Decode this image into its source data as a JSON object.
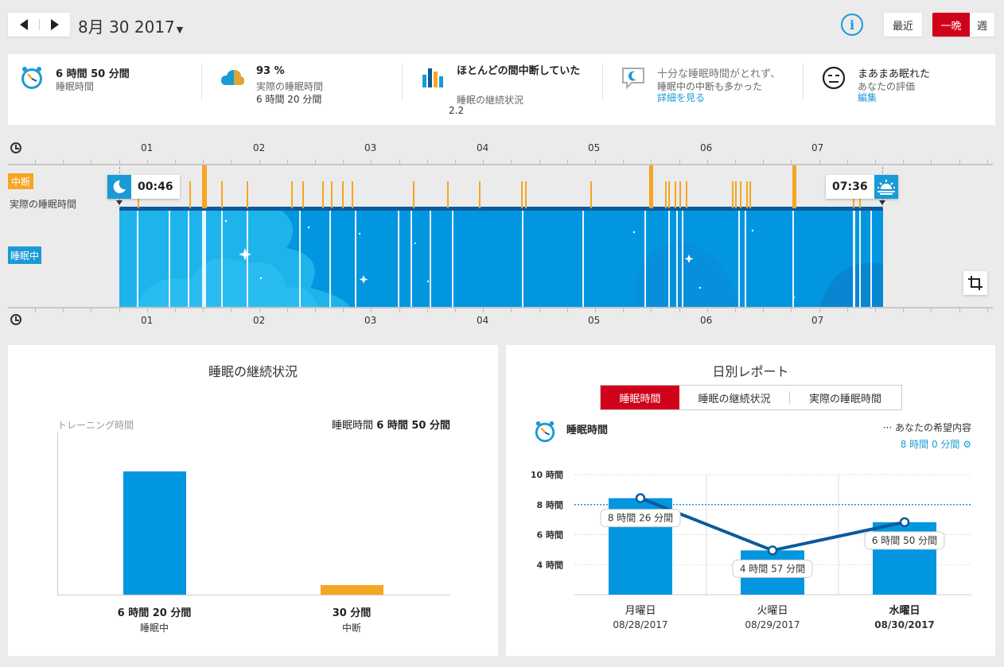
{
  "header": {
    "date": "8月 30 2017",
    "recent_label": "最近",
    "mode_night": "一晩",
    "mode_week": "週",
    "colors": {
      "accent_red": "#d0021b",
      "accent_blue": "#1a9ad6",
      "interrupt_orange": "#f5a623"
    }
  },
  "summary": {
    "sleep_time": {
      "value": "6 時間 50 分間",
      "label": "睡眠時間",
      "icon": "alarm-clock-icon"
    },
    "actual": {
      "percent": "93 %",
      "label": "実際の睡眠時間",
      "value": "6 時間 20 分間",
      "icon": "cloud-icon"
    },
    "continuity": {
      "title": "ほとんどの間中断していた",
      "label": "睡眠の継続状況",
      "value": "2.2",
      "icon": "bar-levels-icon"
    },
    "feedback": {
      "line1": "十分な睡眠時間がとれず、",
      "line2": "睡眠中の中断も多かった",
      "link": "詳細を見る",
      "icon": "speech-moon-icon"
    },
    "rating": {
      "title": "まあまあ眠れた",
      "label": "あなたの評価",
      "link": "編集",
      "icon": "neutral-face-icon"
    }
  },
  "timeline": {
    "hours": [
      "01",
      "02",
      "03",
      "04",
      "05",
      "06",
      "07"
    ],
    "tag_interrupt": "中断",
    "tag_actual": "実際の睡眠時間",
    "tag_sleeping": "睡眠中",
    "start_time": "00:46",
    "end_time": "07:36"
  },
  "continuity_panel": {
    "title": "睡眠の継続状況",
    "training_label": "トレーニング時間",
    "sleep_total_prefix": "睡眠時間",
    "sleep_total_value": "6 時間 50 分間",
    "chart_data": {
      "type": "bar",
      "categories": [
        "睡眠中",
        "中断"
      ],
      "values_minutes": [
        380,
        30
      ],
      "value_labels": [
        "6 時間 20 分間",
        "30 分間"
      ]
    }
  },
  "daily_panel": {
    "title": "日別レポート",
    "tabs": [
      "睡眠時間",
      "睡眠の継続状況",
      "実際の睡眠時間"
    ],
    "metric_title": "睡眠時間",
    "goal_label": "··· あなたの希望内容",
    "goal_value": "8 時間 0 分間",
    "chart_data": {
      "type": "bar",
      "ylabel_ticks": [
        "10 時間",
        "8 時間",
        "6 時間",
        "4 時間"
      ],
      "ylim": [
        2,
        10
      ],
      "goal_hours": 8,
      "categories": [
        "月曜日",
        "火曜日",
        "水曜日"
      ],
      "dates": [
        "08/28/2017",
        "08/29/2017",
        "08/30/2017"
      ],
      "values_hours": [
        8.43,
        4.95,
        6.83
      ],
      "value_labels": [
        "8 時間 26 分間",
        "4 時間 57 分間",
        "6 時間 50 分間"
      ]
    }
  }
}
